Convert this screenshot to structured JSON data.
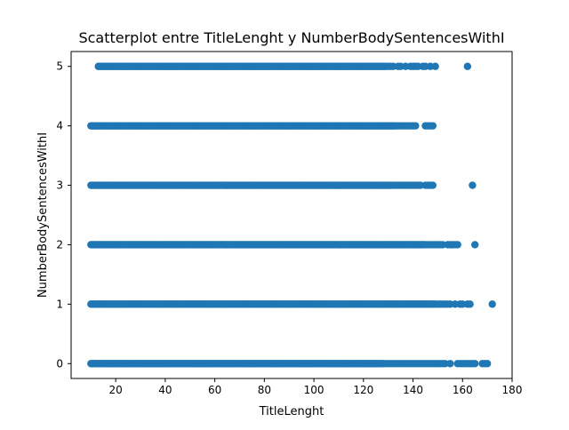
{
  "chart_data": {
    "type": "scatter",
    "title": "Scatterplot entre TitleLenght y NumberBodySentencesWithI",
    "xlabel": "TitleLenght",
    "ylabel": "NumberBodySentencesWithI",
    "xlim": [
      2,
      180
    ],
    "ylim": [
      -0.25,
      5.25
    ],
    "xticks": [
      20,
      40,
      60,
      80,
      100,
      120,
      140,
      160,
      180
    ],
    "yticks": [
      0,
      1,
      2,
      3,
      4,
      5
    ],
    "grid": false,
    "legend": "none",
    "marker_color": "#1f77b4",
    "rows": [
      {
        "y": 5,
        "dense": [
          13,
          129
        ],
        "sparse": [
          130,
          131,
          132,
          134,
          135,
          137,
          139,
          140,
          141,
          142,
          144,
          145,
          147,
          149,
          162
        ]
      },
      {
        "y": 4,
        "dense": [
          10,
          133
        ],
        "sparse": [
          134,
          135,
          136,
          137,
          138,
          139,
          140,
          141,
          145,
          146,
          147,
          148
        ]
      },
      {
        "y": 3,
        "dense": [
          10,
          131
        ],
        "sparse": [
          132,
          133,
          134,
          135,
          136,
          137,
          138,
          139,
          140,
          141,
          142,
          143,
          145,
          146,
          147,
          148,
          164
        ]
      },
      {
        "y": 2,
        "dense": [
          10,
          145
        ],
        "sparse": [
          146,
          147,
          148,
          149,
          150,
          151,
          152,
          154,
          155,
          156,
          157,
          158,
          165
        ]
      },
      {
        "y": 1,
        "dense": [
          10,
          149
        ],
        "sparse": [
          150,
          151,
          152,
          153,
          154,
          155,
          157,
          159,
          160,
          162,
          163,
          172
        ]
      },
      {
        "y": 0,
        "dense": [
          10,
          128
        ],
        "sparse": [
          129,
          130,
          131,
          132,
          133,
          134,
          135,
          136,
          137,
          138,
          139,
          140,
          141,
          142,
          143,
          144,
          145,
          146,
          147,
          148,
          149,
          150,
          151,
          152,
          153,
          155,
          158,
          159,
          160,
          161,
          162,
          163,
          164,
          165,
          168,
          169,
          170
        ]
      }
    ]
  }
}
